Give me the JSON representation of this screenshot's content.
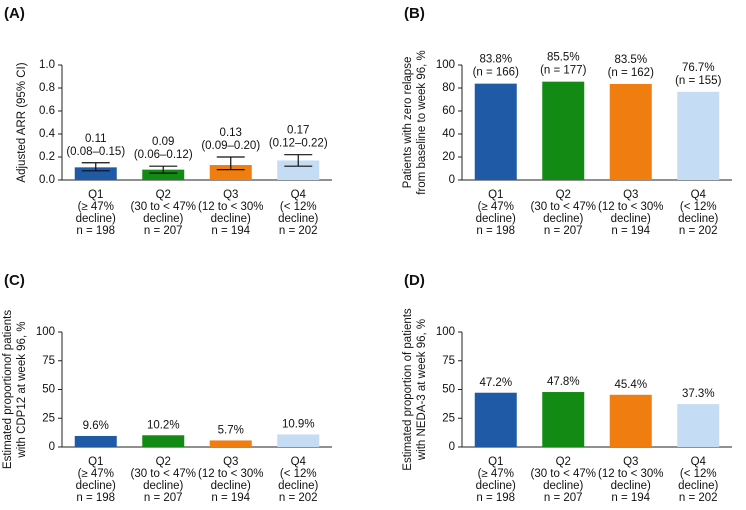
{
  "chart_data": [
    {
      "type": "bar",
      "label": "(A)",
      "ylabel": [
        "Adjusted ARR (95% CI)"
      ],
      "categories": [
        [
          "Q1",
          "(≥ 47%",
          "decline)",
          "n = 198"
        ],
        [
          "Q2",
          "(30 to < 47%",
          "decline)",
          "n = 207"
        ],
        [
          "Q3",
          "(12 to < 30%",
          "decline)",
          "n = 194"
        ],
        [
          "Q4",
          "(< 12%",
          "decline)",
          "n = 202"
        ]
      ],
      "values": [
        0.11,
        0.09,
        0.13,
        0.17
      ],
      "lower": [
        0.08,
        0.06,
        0.09,
        0.12
      ],
      "upper": [
        0.15,
        0.12,
        0.2,
        0.22
      ],
      "value_labels": [
        "0.11",
        "0.09",
        "0.13",
        "0.17"
      ],
      "sub_labels": [
        "(0.08–0.15)",
        "(0.06–0.12)",
        "(0.09–0.20)",
        "(0.12–0.22)"
      ],
      "colors": [
        "#1f5aa6",
        "#138a13",
        "#f07d0f",
        "#c5dcf5"
      ],
      "ylim": [
        0,
        1.0
      ],
      "yticks": [
        {
          "value": 0,
          "label": "0.0"
        },
        0.2,
        0.4,
        0.6,
        0.8,
        {
          "value": 1.0,
          "label": "1.0"
        }
      ]
    },
    {
      "type": "bar",
      "label": "(B)",
      "ylabel": [
        "Patients with zero relapse",
        "from baseline to week 96, %"
      ],
      "categories": [
        [
          "Q1",
          "(≥ 47%",
          "decline)",
          "n = 198"
        ],
        [
          "Q2",
          "(30 to < 47%",
          "decline)",
          "n = 207"
        ],
        [
          "Q3",
          "(12 to < 30%",
          "decline)",
          "n = 194"
        ],
        [
          "Q4",
          "(< 12%",
          "decline)",
          "n = 202"
        ]
      ],
      "values": [
        83.8,
        85.5,
        83.5,
        76.7
      ],
      "value_labels": [
        "83.8%",
        "85.5%",
        "83.5%",
        "76.7%"
      ],
      "sub_labels": [
        "(n = 166)",
        "(n = 177)",
        "(n = 162)",
        "(n = 155)"
      ],
      "colors": [
        "#1f5aa6",
        "#138a13",
        "#f07d0f",
        "#c5dcf5"
      ],
      "ylim": [
        0,
        100
      ],
      "yticks": [
        0,
        20,
        40,
        60,
        80,
        100
      ]
    },
    {
      "type": "bar",
      "label": "(C)",
      "ylabel": [
        "Estimated proportionof patients",
        "with CDP12 at week 96, %"
      ],
      "categories": [
        [
          "Q1",
          "(≥ 47%",
          "decline)",
          "n = 198"
        ],
        [
          "Q2",
          "(30 to < 47%",
          "decline)",
          "n = 207"
        ],
        [
          "Q3",
          "(12 to < 30%",
          "decline)",
          "n = 194"
        ],
        [
          "Q4",
          "(< 12%",
          "decline)",
          "n = 202"
        ]
      ],
      "values": [
        9.6,
        10.2,
        5.7,
        10.9
      ],
      "value_labels": [
        "9.6%",
        "10.2%",
        "5.7%",
        "10.9%"
      ],
      "colors": [
        "#1f5aa6",
        "#138a13",
        "#f07d0f",
        "#c5dcf5"
      ],
      "ylim": [
        0,
        100
      ],
      "yticks": [
        0,
        25,
        50,
        75,
        100
      ]
    },
    {
      "type": "bar",
      "label": "(D)",
      "ylabel": [
        "Estimated proportion of patients",
        "with NEDA-3 at week 96, %"
      ],
      "categories": [
        [
          "Q1",
          "(≥ 47%",
          "decline)",
          "n = 198"
        ],
        [
          "Q2",
          "(30 to < 47%",
          "decline)",
          "n = 207"
        ],
        [
          "Q3",
          "(12 to < 30%",
          "decline)",
          "n = 194"
        ],
        [
          "Q4",
          "(< 12%",
          "decline)",
          "n = 202"
        ]
      ],
      "values": [
        47.2,
        47.8,
        45.4,
        37.3
      ],
      "value_labels": [
        "47.2%",
        "47.8%",
        "45.4%",
        "37.3%"
      ],
      "colors": [
        "#1f5aa6",
        "#138a13",
        "#f07d0f",
        "#c5dcf5"
      ],
      "ylim": [
        0,
        100
      ],
      "yticks": [
        0,
        25,
        50,
        75,
        100
      ]
    }
  ]
}
